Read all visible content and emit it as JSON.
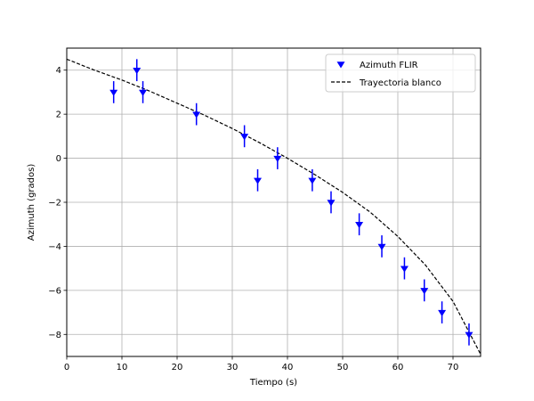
{
  "chart_data": {
    "type": "scatter",
    "title": "",
    "xlabel": "Tiempo (s)",
    "ylabel": "Azimuth (grados)",
    "xlim": [
      0,
      75
    ],
    "ylim": [
      -9,
      5
    ],
    "xticks": [
      0,
      10,
      20,
      30,
      40,
      50,
      60,
      70
    ],
    "yticks": [
      -8,
      -6,
      -4,
      -2,
      0,
      2,
      4
    ],
    "grid": true,
    "legend_position": "top-right",
    "series": [
      {
        "name": "Azimuth FLIR",
        "kind": "scatter-errorbar",
        "marker": "triangle-down",
        "color": "#0000ff",
        "x": [
          8.5,
          12.7,
          13.8,
          23.5,
          32.2,
          34.6,
          38.2,
          44.5,
          47.9,
          53.0,
          57.1,
          61.2,
          64.8,
          68.0,
          72.9
        ],
        "y": [
          3.0,
          4.0,
          3.0,
          2.0,
          1.0,
          -1.0,
          0.0,
          -1.0,
          -2.0,
          -3.0,
          -4.0,
          -5.0,
          -6.0,
          -7.0,
          -8.0
        ],
        "yerr": 0.5
      },
      {
        "name": "Trayectoria blanco",
        "kind": "line",
        "style": "dashed",
        "color": "#000000",
        "x": [
          0,
          5,
          10,
          15,
          20,
          25,
          30,
          35,
          40,
          45,
          50,
          55,
          60,
          65,
          70,
          75
        ],
        "y": [
          4.5,
          4.0,
          3.55,
          3.05,
          2.5,
          1.95,
          1.35,
          0.7,
          0.0,
          -0.75,
          -1.55,
          -2.45,
          -3.55,
          -4.85,
          -6.5,
          -8.9
        ]
      }
    ]
  }
}
